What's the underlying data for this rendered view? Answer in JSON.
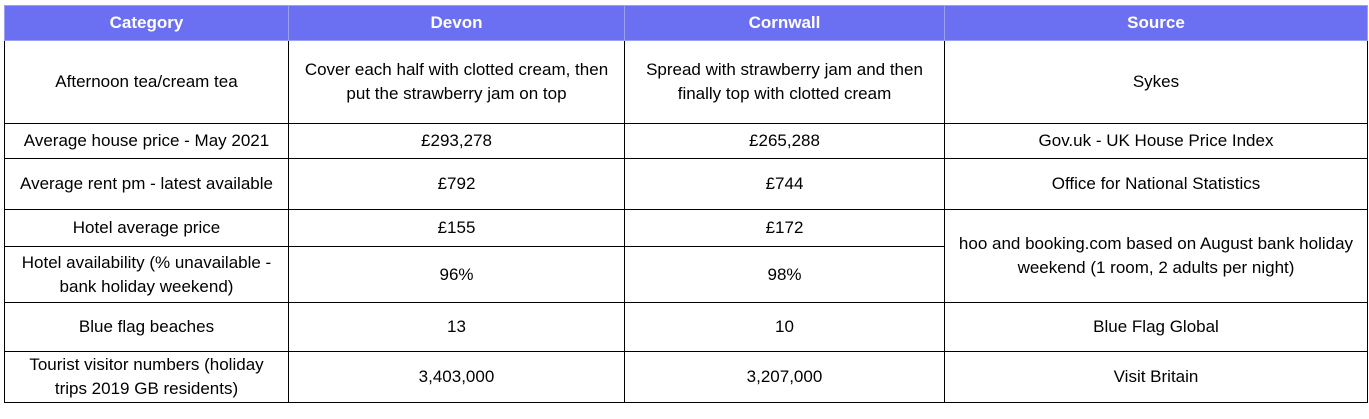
{
  "header": {
    "category": "Category",
    "devon": "Devon",
    "cornwall": "Cornwall",
    "source": "Source"
  },
  "rows": [
    {
      "category": "Afternoon tea/cream tea",
      "devon": "Cover each half with clotted cream, then put the strawberry jam on top",
      "cornwall": "Spread with strawberry jam and then finally top with clotted cream",
      "source": "Sykes"
    },
    {
      "category": "Average house price - May 2021",
      "devon": "£293,278",
      "cornwall": "£265,288",
      "source": "Gov.uk - UK House Price Index"
    },
    {
      "category": "Average rent pm - latest available",
      "devon": "£792",
      "cornwall": "£744",
      "source": "Office for National Statistics"
    },
    {
      "category": "Hotel average price",
      "devon": "£155",
      "cornwall": "£172",
      "source": "hoo and booking.com based on August bank holiday weekend (1 room, 2 adults per night)"
    },
    {
      "category": "Hotel availability (% unavailable - bank holiday weekend)",
      "devon": "96%",
      "cornwall": "98%"
    },
    {
      "category": "Blue flag beaches",
      "devon": "13",
      "cornwall": "10",
      "source": "Blue Flag Global"
    },
    {
      "category": "Tourist visitor numbers (holiday trips 2019 GB residents)",
      "devon": "3,403,000",
      "cornwall": "3,207,000",
      "source": "Visit Britain"
    }
  ]
}
